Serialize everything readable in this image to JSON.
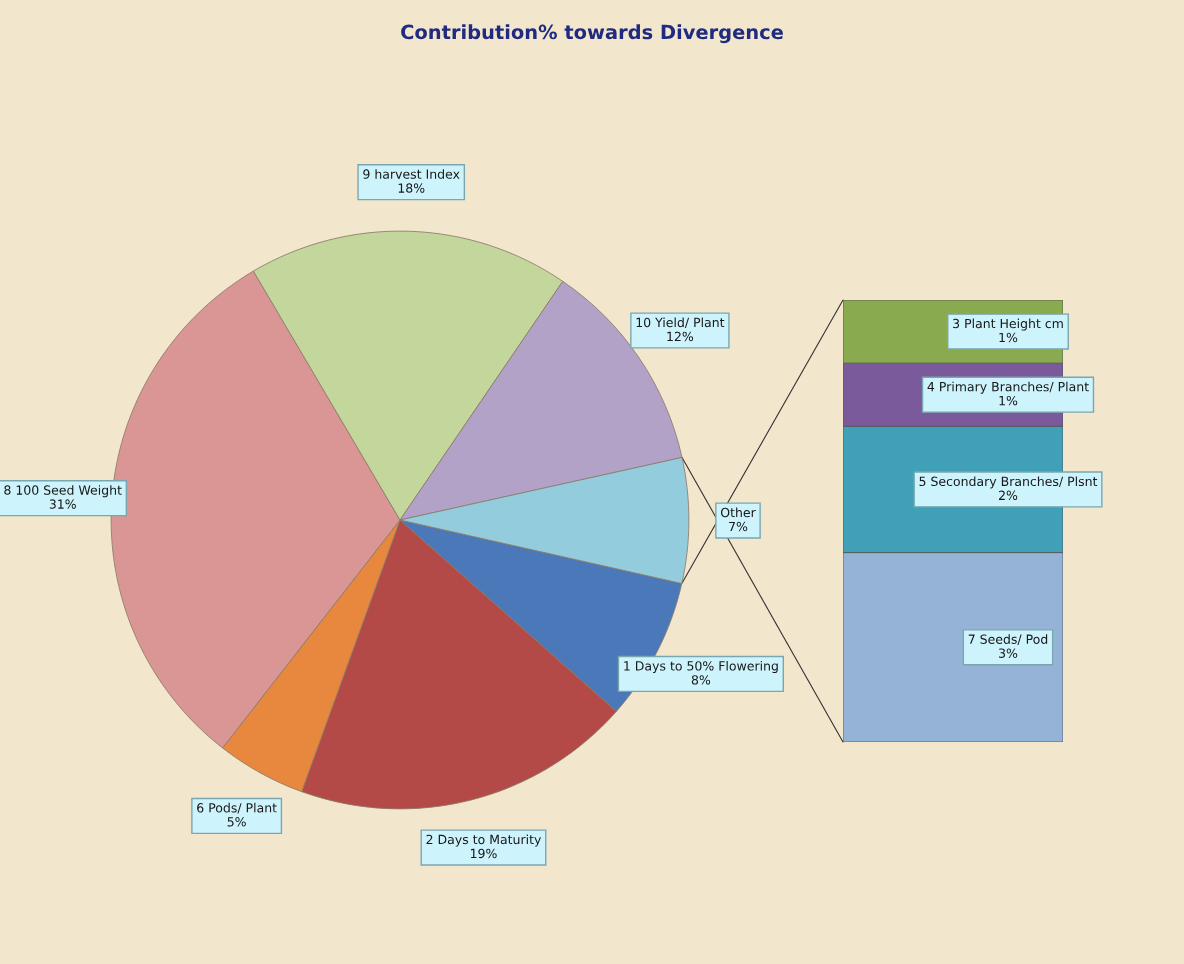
{
  "chart_data": [
    {
      "type": "pie",
      "title": "Contribution% towards Divergence",
      "categories": [
        "1 Days to 50% Flowering",
        "2 Days to Maturity",
        "6 Pods/ Plant",
        "8 100 Seed Weight",
        "9 harvest Index",
        "10 Yield/ Plant",
        "Other"
      ],
      "values": [
        8,
        19,
        5,
        31,
        18,
        12,
        7
      ],
      "value_labels": [
        "8%",
        "19%",
        "5%",
        "31%",
        "18%",
        "12%",
        "7%"
      ],
      "colors": [
        "#4a78b8",
        "#b34a47",
        "#e8873e",
        "#d99694",
        "#c3d69b",
        "#b3a2c7",
        "#93cddd"
      ]
    },
    {
      "type": "bar",
      "stacked": true,
      "categories": [
        null
      ],
      "series": [
        {
          "name": "7 Seeds/ Pod",
          "color": "#95b3d7",
          "values": [
            3
          ],
          "value_labels": [
            "3%"
          ]
        },
        {
          "name": "5 Secondary Branches/ Plsnt",
          "color": "#3fa0b8",
          "values": [
            2
          ],
          "value_labels": [
            "2%"
          ]
        },
        {
          "name": "4 Primary Branches/ Plant",
          "color": "#7a5a9a",
          "values": [
            1
          ],
          "value_labels": [
            "1%"
          ]
        },
        {
          "name": "3 Plant Height cm",
          "color": "#8aaa50",
          "values": [
            1
          ],
          "value_labels": [
            "1%"
          ]
        }
      ]
    }
  ]
}
